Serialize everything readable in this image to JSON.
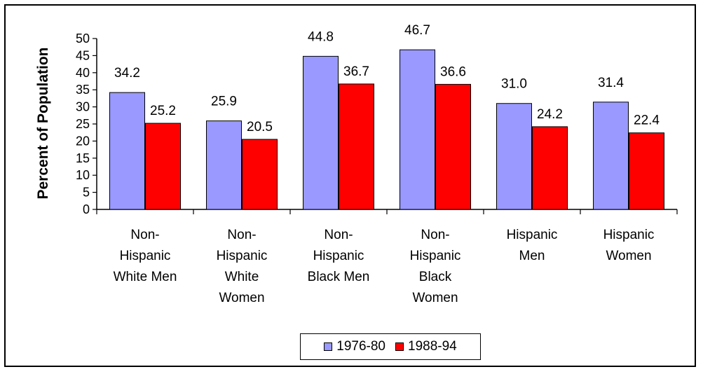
{
  "chart_data": {
    "type": "bar",
    "categories": [
      [
        "Non-",
        "Hispanic",
        "White Men"
      ],
      [
        "Non-",
        "Hispanic",
        "White",
        "Women"
      ],
      [
        "Non-",
        "Hispanic",
        "Black Men"
      ],
      [
        "Non-",
        "Hispanic",
        "Black",
        "Women"
      ],
      [
        "Hispanic",
        "Men"
      ],
      [
        "Hispanic",
        "Women"
      ]
    ],
    "series": [
      {
        "name": "1976-80",
        "color": "#9999ff",
        "values": [
          34.2,
          25.9,
          44.8,
          46.7,
          31.0,
          31.4
        ],
        "labels": [
          "34.2",
          "25.9",
          "44.8",
          "46.7",
          "31.0",
          "31.4"
        ]
      },
      {
        "name": "1988-94",
        "color": "#ff0000",
        "values": [
          25.2,
          20.5,
          36.7,
          36.6,
          24.2,
          22.4
        ],
        "labels": [
          "25.2",
          "20.5",
          "36.7",
          "36.6",
          "24.2",
          "22.4"
        ]
      }
    ],
    "ylabel": "Percent of Population",
    "ylim": [
      0,
      50
    ],
    "yticks": [
      "0",
      "5",
      "10",
      "15",
      "20",
      "25",
      "30",
      "35",
      "40",
      "45",
      "50"
    ],
    "grid": false,
    "legend_position": "bottom-center"
  }
}
